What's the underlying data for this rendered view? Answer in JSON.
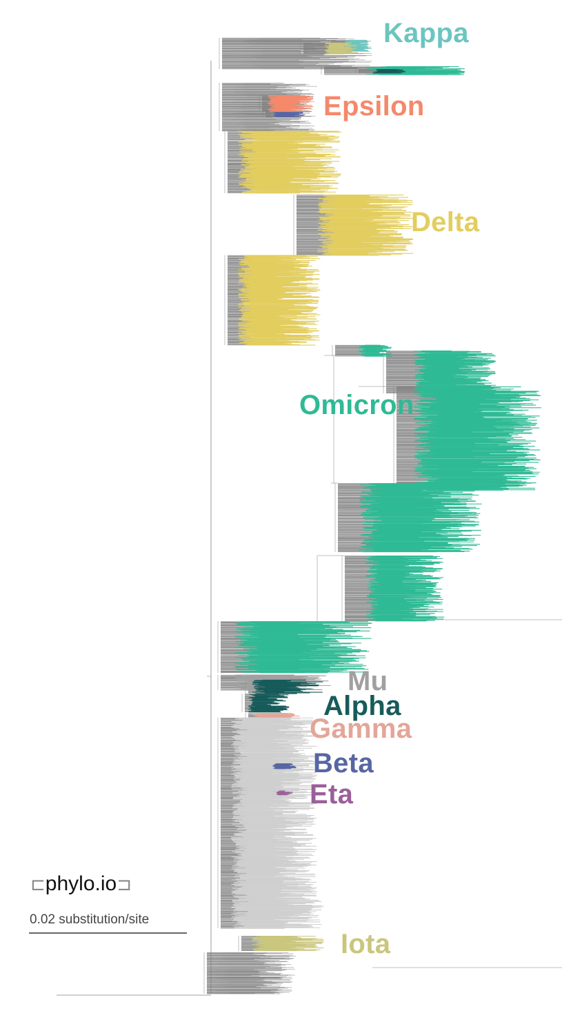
{
  "clades": [
    {
      "id": "kappa",
      "label": "Kappa",
      "color": "#6cc5bf"
    },
    {
      "id": "epsilon",
      "label": "Epsilon",
      "color": "#f4896a"
    },
    {
      "id": "delta",
      "label": "Delta",
      "color": "#e2cd5f"
    },
    {
      "id": "omicron",
      "label": "Omicron",
      "color": "#2fba94"
    },
    {
      "id": "mu",
      "label": "Mu",
      "color": "#a0a0a0"
    },
    {
      "id": "alpha",
      "label": "Alpha",
      "color": "#175b5a"
    },
    {
      "id": "gamma",
      "label": "Gamma",
      "color": "#e3a698"
    },
    {
      "id": "beta",
      "label": "Beta",
      "color": "#5766a3"
    },
    {
      "id": "eta",
      "label": "Eta",
      "color": "#9b5f99"
    },
    {
      "id": "iota",
      "label": "Iota",
      "color": "#c9c67e"
    }
  ],
  "branch_color": "#808080",
  "background_lineage_color": "#cfcfcf",
  "logo": {
    "left_bracket": "⊏",
    "main": "phylo",
    "tld": ".io",
    "right_bracket": "⊐"
  },
  "scale_bar": {
    "label": "0.02 substitution/site"
  }
}
